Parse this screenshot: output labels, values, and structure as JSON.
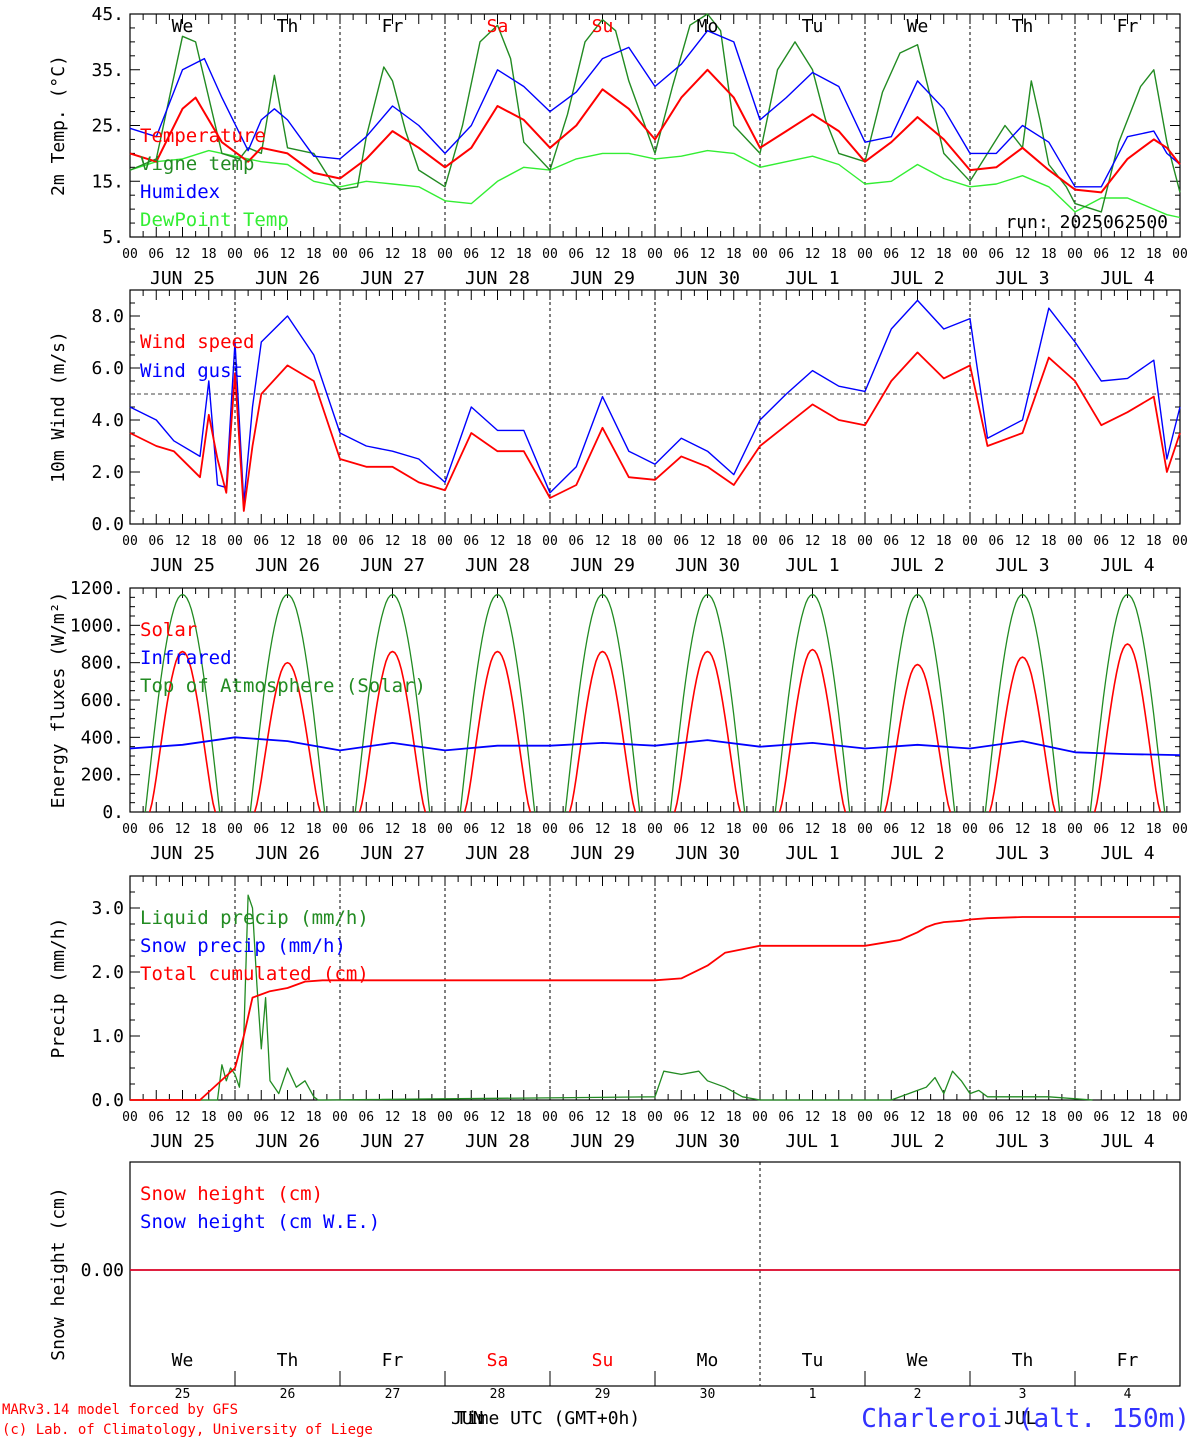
{
  "run_label": "run: 2025062500",
  "footer": {
    "model": "MARv3.14 model forced by GFS",
    "credit": "(c) Lab. of Climatology, University of Liege",
    "station": "Charleroi (alt. 150m)",
    "xaxis_title": "Time UTC (GMT+0h)",
    "month_left": "JUN",
    "month_right": "JUL"
  },
  "days": [
    "JUN 25",
    "JUN 26",
    "JUN 27",
    "JUN 28",
    "JUN 29",
    "JUN 30",
    "JUL  1",
    "JUL  2",
    "JUL  3",
    "JUL  4"
  ],
  "weekdays": [
    "We",
    "Th",
    "Fr",
    "Sa",
    "Su",
    "Mo",
    "Tu",
    "We",
    "Th",
    "Fr"
  ],
  "weekday_colors": [
    "#000000",
    "#000000",
    "#000000",
    "#ff0000",
    "#ff0000",
    "#000000",
    "#000000",
    "#000000",
    "#000000",
    "#000000"
  ],
  "day_numbers": [
    "25",
    "26",
    "27",
    "28",
    "29",
    "30",
    "1",
    "2",
    "3",
    "4"
  ],
  "hour_ticks": [
    "00",
    "06",
    "12",
    "18"
  ],
  "chart_data": [
    {
      "id": "temperature",
      "type": "line",
      "ylabel": "2m Temp. (°C)",
      "ylim": [
        5,
        45
      ],
      "yticks": [
        "5.",
        "15.",
        "25.",
        "35.",
        "45."
      ],
      "yticks_values": [
        5,
        15,
        25,
        35,
        45
      ],
      "x_unit": "hours since JUN 25 00 UTC",
      "series": [
        {
          "name": "Temperature",
          "color": "#ff0000",
          "x": [
            0,
            6,
            12,
            15,
            21,
            27,
            30,
            36,
            42,
            48,
            54,
            60,
            66,
            72,
            78,
            84,
            90,
            96,
            102,
            108,
            114,
            120,
            126,
            132,
            138,
            144,
            150,
            156,
            162,
            168,
            174,
            180,
            186,
            192,
            198,
            204,
            210,
            216,
            222,
            228,
            234,
            237,
            240
          ],
          "y": [
            20,
            18.5,
            28,
            30,
            22,
            18.5,
            21,
            20,
            16.5,
            15.5,
            19,
            24,
            21,
            17.5,
            21,
            28.5,
            26,
            21,
            25,
            31.5,
            28,
            22.5,
            30,
            35,
            30,
            21,
            24,
            27,
            24,
            18.5,
            22,
            26.5,
            22.5,
            17,
            17.5,
            21,
            17,
            13.5,
            13,
            19,
            22.5,
            21,
            18
          ]
        },
        {
          "name": "Vigne temp",
          "color": "#228b22",
          "x": [
            0,
            6,
            12,
            15,
            21,
            25,
            27,
            30,
            33,
            36,
            42,
            46,
            48,
            52,
            54,
            58,
            60,
            63,
            66,
            72,
            76,
            80,
            84,
            87,
            90,
            96,
            100,
            104,
            108,
            111,
            114,
            120,
            124,
            128,
            132,
            135,
            138,
            144,
            148,
            152,
            156,
            159,
            162,
            168,
            172,
            176,
            180,
            183,
            186,
            192,
            196,
            200,
            204,
            206,
            208,
            210,
            214,
            216,
            220,
            222,
            226,
            231,
            234,
            237,
            240
          ],
          "y": [
            17,
            19,
            41,
            40,
            20,
            19,
            21,
            20,
            34,
            21,
            20,
            15,
            13.5,
            14,
            23,
            35.5,
            33,
            24,
            17,
            14,
            25,
            40,
            43,
            37,
            22,
            17,
            27,
            40,
            44,
            42,
            33,
            20,
            32,
            43,
            45,
            42,
            25,
            20,
            35,
            40,
            35,
            26,
            20,
            18.5,
            31,
            38,
            39.5,
            30,
            20,
            15,
            20,
            25,
            21,
            33,
            26,
            18,
            14,
            11,
            10,
            9.5,
            22,
            32,
            35,
            22,
            13
          ]
        },
        {
          "name": "Humidex",
          "color": "#0000ff",
          "x": [
            0,
            6,
            12,
            17,
            21,
            27,
            30,
            33,
            36,
            42,
            48,
            54,
            60,
            66,
            72,
            78,
            84,
            90,
            96,
            102,
            108,
            114,
            120,
            126,
            132,
            138,
            144,
            150,
            156,
            162,
            168,
            174,
            180,
            186,
            192,
            198,
            204,
            210,
            216,
            222,
            228,
            234,
            237,
            240
          ],
          "y": [
            24.5,
            23,
            35,
            37,
            30,
            20.5,
            26,
            28,
            26,
            19.5,
            19,
            23,
            28.5,
            25,
            20,
            25,
            35,
            32,
            27.5,
            31,
            37,
            39,
            32,
            36,
            42,
            40,
            26,
            30,
            34.5,
            32,
            22,
            23,
            33,
            28,
            20,
            20,
            25,
            22,
            14,
            14,
            23,
            24,
            20,
            18
          ]
        },
        {
          "name": "DewPoint Temp",
          "color": "#33ee33",
          "x": [
            0,
            6,
            12,
            18,
            24,
            30,
            36,
            42,
            48,
            54,
            60,
            66,
            72,
            78,
            84,
            90,
            96,
            102,
            108,
            114,
            120,
            126,
            132,
            138,
            144,
            150,
            156,
            162,
            168,
            174,
            180,
            186,
            192,
            198,
            204,
            210,
            216,
            222,
            228,
            234,
            237,
            240
          ],
          "y": [
            17,
            18.5,
            19,
            20.5,
            19.5,
            18.5,
            18,
            15,
            14,
            15,
            14.5,
            14,
            11.5,
            11,
            15,
            17.5,
            17,
            19,
            20,
            20,
            19,
            19.5,
            20.5,
            20,
            17.5,
            18.5,
            19.5,
            18,
            14.5,
            15,
            18,
            15.5,
            14,
            14.5,
            16,
            14,
            9.5,
            12,
            12,
            10,
            9,
            8.5
          ]
        }
      ]
    },
    {
      "id": "wind",
      "type": "line",
      "ylabel": "10m Wind (m/s)",
      "ylim": [
        0,
        9
      ],
      "yticks": [
        "0.0",
        "2.0",
        "4.0",
        "6.0",
        "8.0"
      ],
      "yticks_values": [
        0,
        2,
        4,
        6,
        8
      ],
      "reference_line": 5,
      "x_unit": "hours since JUN 25 00 UTC",
      "series": [
        {
          "name": "Wind speed",
          "color": "#ff0000",
          "x": [
            0,
            6,
            10,
            16,
            18,
            20,
            22,
            24,
            26,
            28,
            30,
            36,
            42,
            48,
            54,
            60,
            66,
            72,
            78,
            84,
            90,
            96,
            102,
            108,
            114,
            120,
            126,
            132,
            138,
            144,
            150,
            156,
            162,
            168,
            174,
            180,
            186,
            192,
            196,
            204,
            210,
            216,
            222,
            228,
            234,
            237,
            240
          ],
          "y": [
            3.5,
            3,
            2.8,
            1.8,
            4.2,
            2.5,
            1.2,
            5.8,
            0.5,
            3,
            5,
            6.1,
            5.5,
            2.5,
            2.2,
            2.2,
            1.6,
            1.3,
            3.5,
            2.8,
            2.8,
            1,
            1.5,
            3.7,
            1.8,
            1.7,
            2.6,
            2.2,
            1.5,
            3,
            3.8,
            4.6,
            4,
            3.8,
            5.5,
            6.6,
            5.6,
            6.1,
            3,
            3.5,
            6.4,
            5.5,
            3.8,
            4.3,
            4.9,
            2,
            3.5
          ]
        },
        {
          "name": "Wind gust",
          "color": "#0000ff",
          "x": [
            0,
            6,
            10,
            16,
            18,
            20,
            22,
            24,
            26,
            28,
            30,
            36,
            42,
            48,
            54,
            60,
            66,
            72,
            78,
            84,
            90,
            96,
            102,
            108,
            114,
            120,
            126,
            132,
            138,
            144,
            150,
            156,
            162,
            168,
            174,
            180,
            186,
            192,
            196,
            204,
            210,
            216,
            222,
            228,
            234,
            237,
            240
          ],
          "y": [
            4.5,
            4,
            3.2,
            2.6,
            5.5,
            1.5,
            1.4,
            7,
            0.8,
            4.5,
            7,
            8,
            6.5,
            3.5,
            3,
            2.8,
            2.5,
            1.6,
            4.5,
            3.6,
            3.6,
            1.2,
            2.2,
            4.9,
            2.8,
            2.3,
            3.3,
            2.8,
            1.9,
            4,
            5,
            5.9,
            5.3,
            5.1,
            7.5,
            8.6,
            7.5,
            7.9,
            3.3,
            4,
            8.3,
            7,
            5.5,
            5.6,
            6.3,
            2.5,
            4.5
          ]
        }
      ]
    },
    {
      "id": "energy",
      "type": "line",
      "ylabel": "Energy fluxes (W/m²)",
      "ylim": [
        0,
        1200
      ],
      "yticks": [
        "0.",
        "200.",
        "400.",
        "600.",
        "800.",
        "1000.",
        "1200."
      ],
      "yticks_values": [
        0,
        200,
        400,
        600,
        800,
        1000,
        1200
      ],
      "x_unit": "hours since JUN 25 00 UTC",
      "series": [
        {
          "name": "Solar",
          "color": "#ff0000",
          "daily_peak_value": [
            860,
            800,
            860,
            860,
            860,
            860,
            870,
            790,
            830,
            900
          ]
        },
        {
          "name": "Infrared",
          "color": "#0000ff",
          "x": [
            0,
            12,
            24,
            36,
            48,
            60,
            72,
            84,
            96,
            108,
            120,
            132,
            144,
            156,
            168,
            180,
            192,
            204,
            216,
            228,
            240
          ],
          "y": [
            340,
            360,
            400,
            380,
            330,
            370,
            330,
            355,
            355,
            370,
            355,
            385,
            350,
            370,
            340,
            360,
            340,
            380,
            320,
            310,
            305
          ]
        },
        {
          "name": "Top of Atmosphere (Solar)",
          "color": "#228b22",
          "daily_peak_value": 1165
        }
      ]
    },
    {
      "id": "precip",
      "type": "line",
      "ylabel": "Precip (mm/h)",
      "ylim": [
        0,
        3.5
      ],
      "yticks": [
        "0.0",
        "1.0",
        "2.0",
        "3.0"
      ],
      "yticks_values": [
        0,
        1,
        2,
        3
      ],
      "x_unit": "hours since JUN 25 00 UTC",
      "series": [
        {
          "name": "Liquid precip (mm/h)",
          "color": "#228b22",
          "x": [
            0,
            20,
            21,
            22,
            23,
            24,
            25,
            26,
            27,
            28,
            29,
            30,
            31,
            32,
            34,
            36,
            38,
            40,
            42,
            43,
            44,
            120,
            122,
            126,
            130,
            132,
            136,
            140,
            144,
            174,
            180,
            182,
            184,
            186,
            188,
            190,
            192,
            194,
            196,
            200,
            210,
            220
          ],
          "y": [
            0,
            0,
            0.55,
            0.3,
            0.5,
            0.4,
            0.2,
            1,
            3.2,
            3,
            1.8,
            0.8,
            1.6,
            0.3,
            0.1,
            0.5,
            0.2,
            0.3,
            0.05,
            0,
            0,
            0.05,
            0.45,
            0.4,
            0.45,
            0.3,
            0.2,
            0.05,
            0,
            0,
            0.15,
            0.2,
            0.35,
            0.1,
            0.45,
            0.3,
            0.1,
            0.15,
            0.05,
            0.05,
            0.05,
            0
          ]
        },
        {
          "name": "Snow precip (mm/h)",
          "color": "#0000ff",
          "x": [
            0,
            240
          ],
          "y": [
            0,
            0
          ]
        },
        {
          "name": "Total cumulated (cm)",
          "color": "#ff0000",
          "x": [
            0,
            16,
            24,
            26,
            28,
            30,
            32,
            36,
            40,
            44,
            48,
            60,
            84,
            96,
            100,
            108,
            120,
            126,
            132,
            136,
            144,
            150,
            168,
            176,
            180,
            182,
            184,
            186,
            190,
            192,
            196,
            204,
            240
          ],
          "y": [
            0,
            0,
            0.5,
            1,
            1.6,
            1.65,
            1.7,
            1.75,
            1.85,
            1.87,
            1.87,
            1.87,
            1.87,
            1.87,
            1.87,
            1.87,
            1.87,
            1.9,
            2.1,
            2.3,
            2.41,
            2.41,
            2.41,
            2.5,
            2.62,
            2.7,
            2.75,
            2.78,
            2.8,
            2.82,
            2.84,
            2.86,
            2.86
          ]
        }
      ]
    },
    {
      "id": "snow",
      "type": "line",
      "ylabel": "Snow height (cm)",
      "yticks": [
        "0.00"
      ],
      "yticks_values": [
        0
      ],
      "x_unit": "hours since JUN 25 00 UTC",
      "series": [
        {
          "name": "Snow height (cm)",
          "color": "#ff0000",
          "x": [
            0,
            240
          ],
          "y": [
            0,
            0
          ]
        },
        {
          "name": "Snow height (cm W.E.)",
          "color": "#0000ff",
          "x": [
            0,
            240
          ],
          "y": [
            0,
            0
          ]
        }
      ]
    }
  ]
}
